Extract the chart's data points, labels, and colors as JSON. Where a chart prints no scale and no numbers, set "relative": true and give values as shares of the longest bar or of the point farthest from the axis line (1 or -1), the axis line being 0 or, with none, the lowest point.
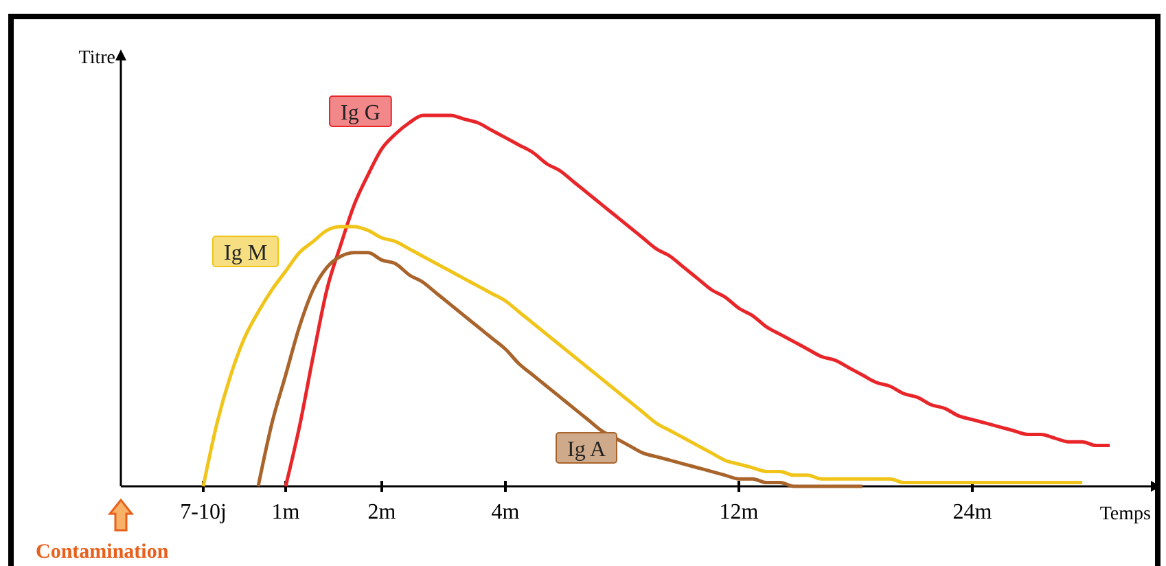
{
  "chart_data": {
    "type": "line",
    "relative": true,
    "xlabel": "Temps",
    "ylabel": "Titre",
    "categories": [
      null,
      null,
      null,
      null,
      null,
      null,
      "7-10j",
      null,
      null,
      null,
      null,
      null,
      "1m",
      null,
      null,
      null,
      null,
      null,
      null,
      "2m",
      null,
      null,
      null,
      null,
      null,
      null,
      null,
      null,
      "4m",
      null,
      null,
      null,
      null,
      null,
      null,
      null,
      null,
      null,
      null,
      null,
      null,
      null,
      null,
      null,
      null,
      "12m",
      null,
      null,
      null,
      null,
      null,
      null,
      null,
      null,
      null,
      null,
      null,
      null,
      null,
      null,
      null,
      null,
      "24m",
      null,
      null,
      null,
      null,
      null,
      null,
      null,
      null,
      null,
      null,
      null,
      null,
      null
    ],
    "annotations": [
      "Contamination"
    ],
    "series": [
      {
        "name": "Ig G",
        "color": "#e8262a",
        "values": [
          null,
          null,
          null,
          null,
          null,
          null,
          null,
          null,
          null,
          null,
          null,
          null,
          0,
          0.16,
          0.35,
          0.53,
          0.65,
          0.76,
          0.84,
          0.91,
          0.95,
          0.98,
          1,
          1,
          1,
          0.99,
          0.98,
          0.96,
          0.94,
          0.92,
          0.9,
          0.87,
          0.85,
          0.82,
          0.79,
          0.76,
          0.73,
          0.7,
          0.67,
          0.64,
          0.62,
          0.59,
          0.56,
          0.53,
          0.51,
          0.48,
          0.46,
          0.43,
          0.41,
          0.39,
          0.37,
          0.35,
          0.34,
          0.32,
          0.3,
          0.28,
          0.27,
          0.25,
          0.24,
          0.22,
          0.21,
          0.19,
          0.18,
          0.17,
          0.16,
          0.15,
          0.14,
          0.14,
          0.13,
          0.12,
          0.12,
          0.11,
          0.11,
          null,
          null,
          null
        ]
      },
      {
        "name": "Ig M",
        "color": "#f0c419",
        "values": [
          null,
          null,
          null,
          null,
          null,
          null,
          0,
          0.17,
          0.3,
          0.4,
          0.47,
          0.53,
          0.58,
          0.63,
          0.66,
          0.69,
          0.7,
          0.7,
          0.69,
          0.67,
          0.66,
          0.64,
          0.62,
          0.6,
          0.58,
          0.56,
          0.54,
          0.52,
          0.5,
          0.47,
          0.44,
          0.41,
          0.38,
          0.35,
          0.32,
          0.29,
          0.26,
          0.23,
          0.2,
          0.17,
          0.15,
          0.13,
          0.11,
          0.09,
          0.07,
          0.06,
          0.05,
          0.04,
          0.04,
          0.03,
          0.03,
          0.02,
          0.02,
          0.02,
          0.02,
          0.02,
          0.02,
          0.01,
          0.01,
          0.01,
          0.01,
          0.01,
          0.01,
          0.01,
          0.01,
          0.01,
          0.01,
          0.01,
          0.01,
          0.01,
          0.01,
          null,
          null,
          null,
          null,
          null
        ]
      },
      {
        "name": "Ig A",
        "color": "#a8642a",
        "values": [
          null,
          null,
          null,
          null,
          null,
          null,
          null,
          null,
          null,
          null,
          0,
          0.17,
          0.3,
          0.43,
          0.53,
          0.59,
          0.62,
          0.63,
          0.63,
          0.61,
          0.6,
          0.57,
          0.55,
          0.52,
          0.49,
          0.46,
          0.43,
          0.4,
          0.37,
          0.33,
          0.3,
          0.27,
          0.24,
          0.21,
          0.18,
          0.15,
          0.13,
          0.11,
          0.09,
          0.08,
          0.07,
          0.06,
          0.05,
          0.04,
          0.03,
          0.02,
          0.02,
          0.01,
          0.01,
          0,
          0,
          0,
          0,
          0,
          0,
          null,
          null,
          null,
          null,
          null,
          null,
          null,
          null,
          null,
          null,
          null,
          null,
          null,
          null,
          null,
          null,
          null,
          null,
          null,
          null,
          null
        ]
      }
    ]
  }
}
